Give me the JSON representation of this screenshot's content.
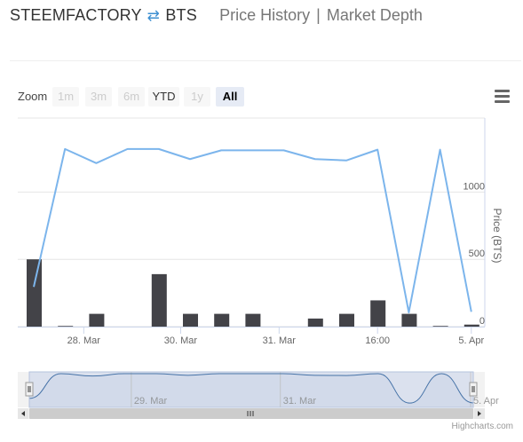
{
  "header": {
    "base": "STEEMFACTORY",
    "swap_icon": "arrows-swap-icon",
    "quote": "BTS",
    "tab_price": "Price History",
    "tab_sep": "|",
    "tab_depth": "Market Depth"
  },
  "toolbar": {
    "zoom_label": "Zoom",
    "buttons": [
      {
        "label": "1m",
        "state": "disabled"
      },
      {
        "label": "3m",
        "state": "disabled"
      },
      {
        "label": "6m",
        "state": "disabled"
      },
      {
        "label": "YTD",
        "state": "enabled"
      },
      {
        "label": "1y",
        "state": "disabled"
      },
      {
        "label": "All",
        "state": "selected"
      }
    ],
    "menu_icon": "hamburger-menu-icon"
  },
  "credits": "Highcharts.com",
  "colors": {
    "price_line": "#7cb5ec",
    "volume_bar": "#434348",
    "navigator_fill": "#ccd6eb",
    "navigator_line": "#4572a7",
    "grid": "#e6e6e6"
  },
  "chart_data": {
    "type": "line",
    "ylabel": "Price (BTS)",
    "ylim": [
      0,
      1550
    ],
    "y_ticks": [
      0,
      500,
      1000
    ],
    "y_tick_labels": [
      "0",
      "500",
      "1000"
    ],
    "x_ticks": [
      {
        "x": 1.6,
        "label": "28. Mar"
      },
      {
        "x": 4.7,
        "label": "30. Mar"
      },
      {
        "x": 7.85,
        "label": "31. Mar"
      },
      {
        "x": 11.0,
        "label": "16:00"
      },
      {
        "x": 14.0,
        "label": "5. Apr"
      }
    ],
    "series": [
      {
        "type": "column",
        "x": [
          0,
          1,
          2,
          4,
          5,
          6,
          7,
          9,
          10,
          11,
          12,
          13,
          14
        ],
        "values": [
          500,
          5,
          95,
          390,
          95,
          95,
          95,
          60,
          95,
          195,
          95,
          5,
          15
        ]
      },
      {
        "type": "line",
        "x": [
          0,
          1,
          2,
          3,
          4,
          5,
          6,
          7,
          8,
          9,
          10,
          11,
          12,
          13,
          14
        ],
        "values": [
          295,
          1320,
          1215,
          1320,
          1320,
          1245,
          1310,
          1310,
          1310,
          1245,
          1235,
          1315,
          105,
          1315,
          110
        ]
      }
    ],
    "navigator": {
      "x_ticks": [
        {
          "x": 3.3,
          "label": "29. Mar"
        },
        {
          "x": 8.0,
          "label": "31. Mar"
        },
        {
          "x": 14.0,
          "label": "5. Apr"
        }
      ]
    }
  }
}
